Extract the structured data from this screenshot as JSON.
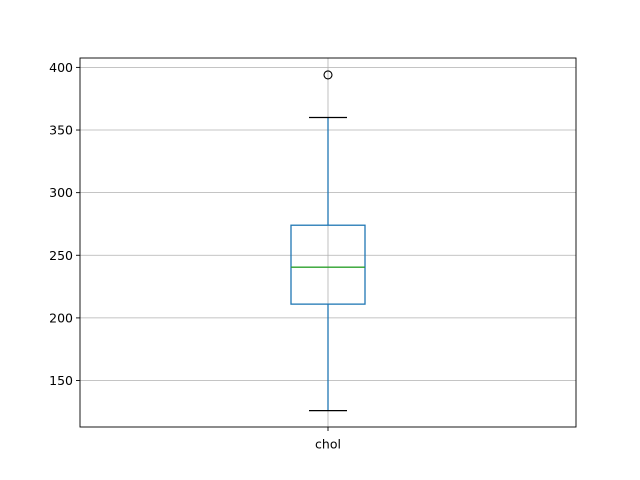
{
  "chart_data": {
    "type": "box",
    "title": "",
    "xlabel": "",
    "ylabel": "",
    "categories": [
      "chol"
    ],
    "ylim": [
      112.9,
      407.5
    ],
    "yticks": [
      150,
      200,
      250,
      300,
      350,
      400
    ],
    "grid": true,
    "boxes": [
      {
        "label": "chol",
        "whisker_low": 126,
        "q1": 211,
        "median": 240.5,
        "q3": 274,
        "whisker_high": 360,
        "outliers": [
          394
        ]
      }
    ],
    "colors": {
      "box": "#1f77b4",
      "median": "#2ca02c",
      "whisker_cap": "#000000",
      "outlier": "#000000",
      "grid": "#b0b0b0"
    }
  }
}
